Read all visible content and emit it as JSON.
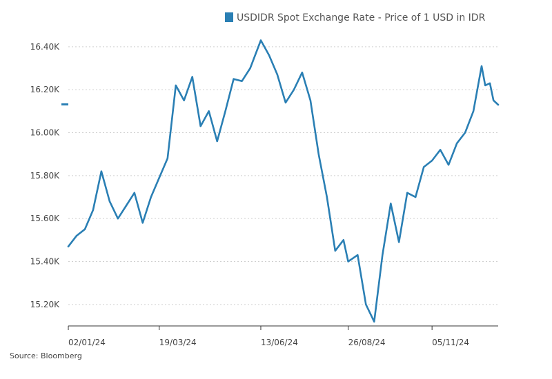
{
  "chart_data": {
    "type": "line",
    "title": "",
    "xlabel": "",
    "ylabel": "",
    "grid": "horizontal dotted",
    "legend_position": "top-right",
    "series": [
      {
        "name": "USDIDR Spot Exchange Rate - Price of 1 USD in IDR",
        "color": "#2a7fb4",
        "x": [
          "2024-01-02",
          "2024-01-09",
          "2024-01-16",
          "2024-01-23",
          "2024-01-30",
          "2024-02-06",
          "2024-02-13",
          "2024-02-20",
          "2024-02-27",
          "2024-03-05",
          "2024-03-12",
          "2024-03-19",
          "2024-03-26",
          "2024-04-02",
          "2024-04-09",
          "2024-04-16",
          "2024-04-23",
          "2024-04-30",
          "2024-05-07",
          "2024-05-14",
          "2024-05-21",
          "2024-05-28",
          "2024-06-04",
          "2024-06-13",
          "2024-06-20",
          "2024-06-27",
          "2024-07-04",
          "2024-07-11",
          "2024-07-18",
          "2024-07-25",
          "2024-08-01",
          "2024-08-08",
          "2024-08-15",
          "2024-08-22",
          "2024-08-26",
          "2024-09-03",
          "2024-09-10",
          "2024-09-17",
          "2024-09-24",
          "2024-10-01",
          "2024-10-08",
          "2024-10-15",
          "2024-10-22",
          "2024-10-29",
          "2024-11-05",
          "2024-11-12",
          "2024-11-19",
          "2024-11-26",
          "2024-12-03",
          "2024-12-10",
          "2024-12-17",
          "2024-12-20",
          "2024-12-24",
          "2024-12-27",
          "2024-12-31"
        ],
        "y": [
          15470,
          15520,
          15550,
          15640,
          15820,
          15680,
          15600,
          15660,
          15720,
          15580,
          15700,
          15790,
          15880,
          16220,
          16150,
          16260,
          16030,
          16100,
          15960,
          16100,
          16250,
          16240,
          16300,
          16430,
          16360,
          16270,
          16140,
          16200,
          16280,
          16150,
          15900,
          15700,
          15450,
          15500,
          15400,
          15430,
          15200,
          15120,
          15430,
          15670,
          15490,
          15720,
          15700,
          15840,
          15870,
          15920,
          15850,
          15950,
          16000,
          16100,
          16310,
          16220,
          16230,
          16150,
          16130
        ]
      }
    ],
    "y_ticks": [
      "15.20K",
      "15.40K",
      "15.60K",
      "15.80K",
      "16.00K",
      "16.20K",
      "16.40K"
    ],
    "ylim": [
      15100,
      16470
    ],
    "x_ticks": [
      {
        "label": "02/01/24",
        "date": "2024-01-02"
      },
      {
        "label": "19/03/24",
        "date": "2024-03-19"
      },
      {
        "label": "13/06/24",
        "date": "2024-06-13"
      },
      {
        "label": "26/08/24",
        "date": "2024-08-26"
      },
      {
        "label": "05/11/24",
        "date": "2024-11-05"
      }
    ],
    "xlim": [
      "2024-01-02",
      "2024-12-31"
    ],
    "last_value": 16130
  },
  "source": "Source: Bloomberg",
  "colors": {
    "series": "#2a7fb4",
    "grid": "#d0d0d0",
    "axis": "#333333"
  }
}
